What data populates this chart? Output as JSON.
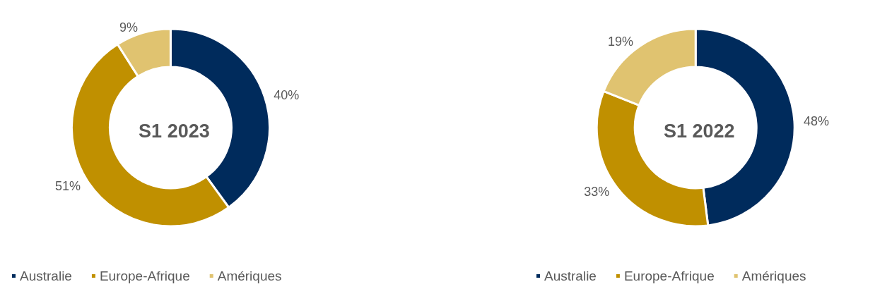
{
  "chart_data": [
    {
      "type": "donut",
      "title": "S1 2023",
      "categories": [
        "Australie",
        "Europe-Afrique",
        "Amériques"
      ],
      "values": [
        40,
        51,
        9
      ],
      "value_labels": [
        "40%",
        "51%",
        "9%"
      ],
      "colors": [
        "#002b5c",
        "#c09000",
        "#e0c370"
      ],
      "legend": "bottom"
    },
    {
      "type": "donut",
      "title": "S1 2022",
      "categories": [
        "Australie",
        "Europe-Afrique",
        "Amériques"
      ],
      "values": [
        48,
        33,
        19
      ],
      "value_labels": [
        "48%",
        "33%",
        "19%"
      ],
      "colors": [
        "#002b5c",
        "#c09000",
        "#e0c370"
      ],
      "legend": "bottom"
    }
  ]
}
